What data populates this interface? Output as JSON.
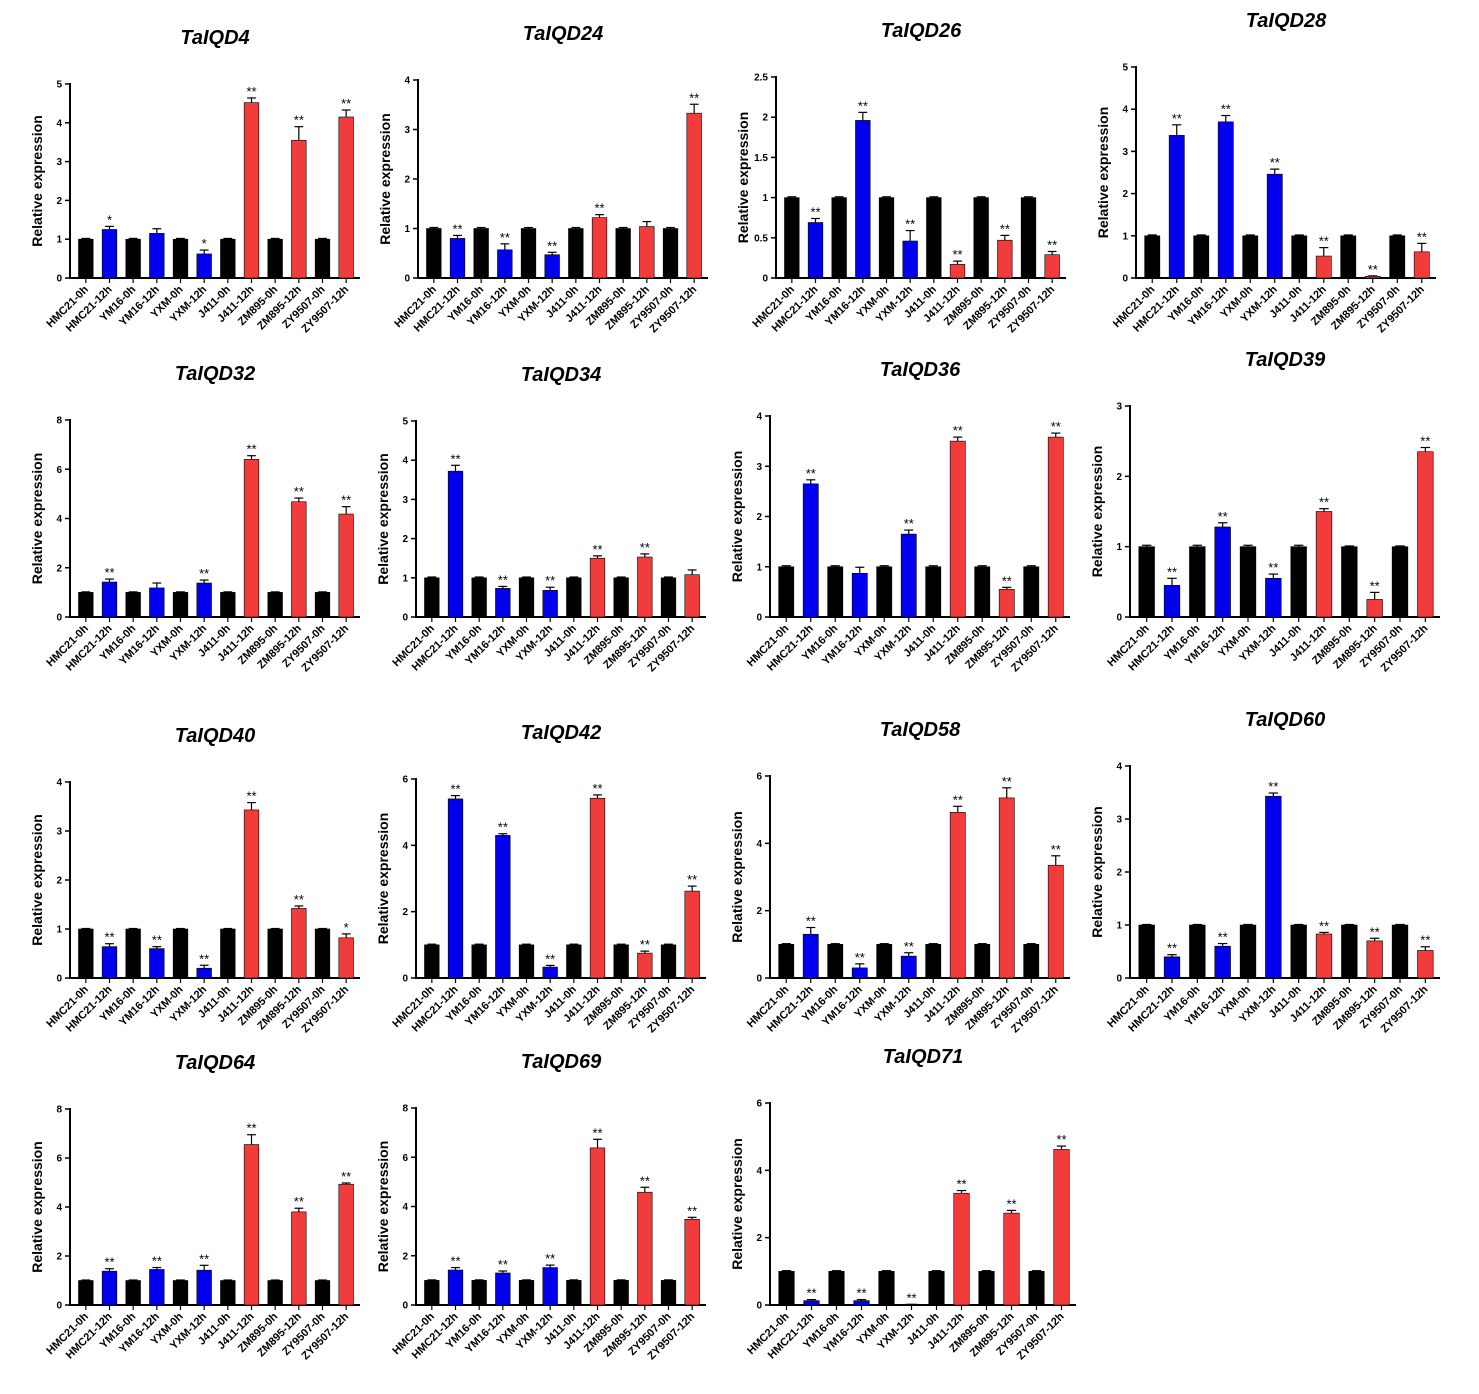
{
  "colors": {
    "black": "#000000",
    "blue": "#0000ee",
    "red": "#f23b3b"
  },
  "chart_data": [
    {
      "type": "bar",
      "title": "TaIQD4",
      "ylabel": "Relative expression",
      "ylim": [
        0,
        5
      ],
      "yticks": [
        0,
        1,
        2,
        3,
        4,
        5
      ],
      "categories": [
        "HMC21-0h",
        "HMC21-12h",
        "YM16-0h",
        "YM16-12h",
        "YXM-0h",
        "YXM-12h",
        "J411-0h",
        "J411-12h",
        "ZM895-0h",
        "ZM895-12h",
        "ZY9507-0h",
        "ZY9507-12h"
      ],
      "values": [
        1,
        1.25,
        1,
        1.15,
        1,
        0.62,
        1,
        4.52,
        1,
        3.55,
        1,
        4.15
      ],
      "errors": [
        0.02,
        0.08,
        0.02,
        0.12,
        0.02,
        0.1,
        0.02,
        0.12,
        0.02,
        0.35,
        0.02,
        0.18
      ],
      "colors": [
        "black",
        "blue",
        "black",
        "blue",
        "black",
        "blue",
        "black",
        "red",
        "black",
        "red",
        "black",
        "red"
      ],
      "significance": [
        "",
        "*",
        "",
        "",
        "",
        "*",
        "",
        "**",
        "",
        "**",
        "",
        "**"
      ]
    },
    {
      "type": "bar",
      "title": "TaIQD24",
      "ylabel": "Relative expression",
      "ylim": [
        0,
        4
      ],
      "yticks": [
        0,
        1,
        2,
        3,
        4
      ],
      "categories": [
        "HMC21-0h",
        "HMC21-12h",
        "YM16-0h",
        "YM16-12h",
        "YXM-0h",
        "YXM-12h",
        "J411-0h",
        "J411-12h",
        "ZM895-0h",
        "ZM895-12h",
        "ZY9507-0h",
        "ZY9507-12h"
      ],
      "values": [
        1,
        0.8,
        1,
        0.57,
        1,
        0.47,
        1,
        1.22,
        1,
        1.04,
        1,
        3.33
      ],
      "errors": [
        0.02,
        0.06,
        0.02,
        0.12,
        0.02,
        0.05,
        0.02,
        0.06,
        0.02,
        0.1,
        0.02,
        0.18
      ],
      "colors": [
        "black",
        "blue",
        "black",
        "blue",
        "black",
        "blue",
        "black",
        "red",
        "black",
        "red",
        "black",
        "red"
      ],
      "significance": [
        "",
        "**",
        "",
        "**",
        "",
        "**",
        "",
        "**",
        "",
        "",
        "",
        "**"
      ]
    },
    {
      "type": "bar",
      "title": "TaIQD26",
      "ylabel": "Relative expression",
      "ylim": [
        0,
        2.5
      ],
      "yticks": [
        0,
        0.5,
        1.0,
        1.5,
        2.0,
        2.5
      ],
      "categories": [
        "HMC21-0h",
        "HMC21-12h",
        "YM16-0h",
        "YM16-12h",
        "YXM-0h",
        "YXM-12h",
        "J411-0h",
        "J411-12h",
        "ZM895-0h",
        "ZM895-12h",
        "ZY9507-0h",
        "ZY9507-12h"
      ],
      "values": [
        1,
        0.69,
        1,
        1.96,
        1,
        0.46,
        1,
        0.17,
        1,
        0.47,
        1,
        0.29
      ],
      "errors": [
        0.01,
        0.05,
        0.01,
        0.1,
        0.01,
        0.13,
        0.01,
        0.04,
        0.01,
        0.06,
        0.01,
        0.04
      ],
      "colors": [
        "black",
        "blue",
        "black",
        "blue",
        "black",
        "blue",
        "black",
        "red",
        "black",
        "red",
        "black",
        "red"
      ],
      "significance": [
        "",
        "**",
        "",
        "**",
        "",
        "**",
        "",
        "**",
        "",
        "**",
        "",
        "**"
      ]
    },
    {
      "type": "bar",
      "title": "TaIQD28",
      "ylabel": "Relative expression",
      "ylim": [
        0,
        5
      ],
      "yticks": [
        0,
        1,
        2,
        3,
        4,
        5
      ],
      "categories": [
        "HMC21-0h",
        "HMC21-12h",
        "YM16-0h",
        "YM16-12h",
        "YXM-0h",
        "YXM-12h",
        "J411-0h",
        "J411-12h",
        "ZM895-0h",
        "ZM895-12h",
        "ZY9507-0h",
        "ZY9507-12h"
      ],
      "values": [
        1,
        3.38,
        1,
        3.7,
        1,
        2.46,
        1,
        0.52,
        1,
        0.04,
        1,
        0.62
      ],
      "errors": [
        0.02,
        0.25,
        0.02,
        0.15,
        0.02,
        0.12,
        0.02,
        0.2,
        0.02,
        0.01,
        0.02,
        0.2
      ],
      "colors": [
        "black",
        "blue",
        "black",
        "blue",
        "black",
        "blue",
        "black",
        "red",
        "black",
        "red",
        "black",
        "red"
      ],
      "significance": [
        "",
        "**",
        "",
        "**",
        "",
        "**",
        "",
        "**",
        "",
        "**",
        "",
        "**"
      ]
    },
    {
      "type": "bar",
      "title": "TaIQD32",
      "ylabel": "Relative expression",
      "ylim": [
        0,
        8
      ],
      "yticks": [
        0,
        2,
        4,
        6,
        8
      ],
      "categories": [
        "HMC21-0h",
        "HMC21-12h",
        "YM16-0h",
        "YM16-12h",
        "YXM-0h",
        "YXM-12h",
        "J411-0h",
        "J411-12h",
        "ZM895-0h",
        "ZM895-12h",
        "ZY9507-0h",
        "ZY9507-12h"
      ],
      "values": [
        1,
        1.42,
        1,
        1.18,
        1,
        1.38,
        1,
        6.4,
        1,
        4.68,
        1,
        4.18
      ],
      "errors": [
        0.02,
        0.12,
        0.02,
        0.2,
        0.02,
        0.12,
        0.02,
        0.15,
        0.02,
        0.15,
        0.02,
        0.3
      ],
      "colors": [
        "black",
        "blue",
        "black",
        "blue",
        "black",
        "blue",
        "black",
        "red",
        "black",
        "red",
        "black",
        "red"
      ],
      "significance": [
        "",
        "**",
        "",
        "",
        "",
        "**",
        "",
        "**",
        "",
        "**",
        "",
        "**"
      ]
    },
    {
      "type": "bar",
      "title": "TaIQD34",
      "ylabel": "Relative expression",
      "ylim": [
        0,
        5
      ],
      "yticks": [
        0,
        1,
        2,
        3,
        4,
        5
      ],
      "categories": [
        "HMC21-0h",
        "HMC21-12h",
        "YM16-0h",
        "YM16-12h",
        "YXM-0h",
        "YXM-12h",
        "J411-0h",
        "J411-12h",
        "ZM895-0h",
        "ZM895-12h",
        "ZY9507-0h",
        "ZY9507-12h"
      ],
      "values": [
        1,
        3.72,
        1,
        0.73,
        1,
        0.68,
        1,
        1.5,
        1,
        1.53,
        1,
        1.08
      ],
      "errors": [
        0.02,
        0.15,
        0.02,
        0.05,
        0.02,
        0.08,
        0.02,
        0.06,
        0.02,
        0.08,
        0.02,
        0.12
      ],
      "colors": [
        "black",
        "blue",
        "black",
        "blue",
        "black",
        "blue",
        "black",
        "red",
        "black",
        "red",
        "black",
        "red"
      ],
      "significance": [
        "",
        "**",
        "",
        "**",
        "",
        "**",
        "",
        "**",
        "",
        "**",
        "",
        ""
      ]
    },
    {
      "type": "bar",
      "title": "TaIQD36",
      "ylabel": "Relative expression",
      "ylim": [
        0,
        4
      ],
      "yticks": [
        0,
        1,
        2,
        3,
        4
      ],
      "categories": [
        "HMC21-0h",
        "HMC21-12h",
        "YM16-0h",
        "YM16-12h",
        "YXM-0h",
        "YXM-12h",
        "J411-0h",
        "J411-12h",
        "ZM895-0h",
        "ZM895-12h",
        "ZY9507-0h",
        "ZY9507-12h"
      ],
      "values": [
        1,
        2.65,
        1,
        0.87,
        1,
        1.65,
        1,
        3.5,
        1,
        0.55,
        1,
        3.58
      ],
      "errors": [
        0.02,
        0.08,
        0.02,
        0.12,
        0.02,
        0.08,
        0.02,
        0.08,
        0.02,
        0.04,
        0.02,
        0.08
      ],
      "colors": [
        "black",
        "blue",
        "black",
        "blue",
        "black",
        "blue",
        "black",
        "red",
        "black",
        "red",
        "black",
        "red"
      ],
      "significance": [
        "",
        "**",
        "",
        "",
        "",
        "**",
        "",
        "**",
        "",
        "**",
        "",
        "**"
      ]
    },
    {
      "type": "bar",
      "title": "TaIQD39",
      "ylabel": "Relative expression",
      "ylim": [
        0,
        3
      ],
      "yticks": [
        0,
        1,
        2,
        3
      ],
      "categories": [
        "HMC21-0h",
        "HMC21-12h",
        "YM16-0h",
        "YM16-12h",
        "YXM-0h",
        "YXM-12h",
        "J411-0h",
        "J411-12h",
        "ZM895-0h",
        "ZM895-12h",
        "ZY9507-0h",
        "ZY9507-12h"
      ],
      "values": [
        1,
        0.45,
        1,
        1.28,
        1,
        0.55,
        1,
        1.5,
        1,
        0.25,
        1,
        2.35
      ],
      "errors": [
        0.02,
        0.1,
        0.02,
        0.06,
        0.02,
        0.06,
        0.02,
        0.04,
        0.01,
        0.1,
        0.01,
        0.06
      ],
      "colors": [
        "black",
        "blue",
        "black",
        "blue",
        "black",
        "blue",
        "black",
        "red",
        "black",
        "red",
        "black",
        "red"
      ],
      "significance": [
        "",
        "**",
        "",
        "**",
        "",
        "**",
        "",
        "**",
        "",
        "**",
        "",
        "**"
      ]
    },
    {
      "type": "bar",
      "title": "TaIQD40",
      "ylabel": "Relative expression",
      "ylim": [
        0,
        4
      ],
      "yticks": [
        0,
        1,
        2,
        3,
        4
      ],
      "categories": [
        "HMC21-0h",
        "HMC21-12h",
        "YM16-0h",
        "YM16-12h",
        "YXM-0h",
        "YXM-12h",
        "J411-0h",
        "J411-12h",
        "ZM895-0h",
        "ZM895-12h",
        "ZY9507-0h",
        "ZY9507-12h"
      ],
      "values": [
        1,
        0.64,
        1,
        0.6,
        1,
        0.2,
        1,
        3.43,
        1,
        1.42,
        1,
        0.82
      ],
      "errors": [
        0.01,
        0.06,
        0.01,
        0.04,
        0.01,
        0.06,
        0.01,
        0.15,
        0.01,
        0.05,
        0.01,
        0.08
      ],
      "colors": [
        "black",
        "blue",
        "black",
        "blue",
        "black",
        "blue",
        "black",
        "red",
        "black",
        "red",
        "black",
        "red"
      ],
      "significance": [
        "",
        "**",
        "",
        "**",
        "",
        "**",
        "",
        "**",
        "",
        "**",
        "",
        "*"
      ]
    },
    {
      "type": "bar",
      "title": "TaIQD42",
      "ylabel": "Relative expression",
      "ylim": [
        0,
        6
      ],
      "yticks": [
        0,
        2,
        4,
        6
      ],
      "categories": [
        "HMC21-0h",
        "HMC21-12h",
        "YM16-0h",
        "YM16-12h",
        "YXM-0h",
        "YXM-12h",
        "J411-0h",
        "J411-12h",
        "ZM895-0h",
        "ZM895-12h",
        "ZY9507-0h",
        "ZY9507-12h"
      ],
      "values": [
        1,
        5.4,
        1,
        4.3,
        1,
        0.33,
        1,
        5.42,
        1,
        0.75,
        1,
        2.62
      ],
      "errors": [
        0.02,
        0.1,
        0.02,
        0.05,
        0.02,
        0.05,
        0.02,
        0.1,
        0.02,
        0.06,
        0.02,
        0.15
      ],
      "colors": [
        "black",
        "blue",
        "black",
        "blue",
        "black",
        "blue",
        "black",
        "red",
        "black",
        "red",
        "black",
        "red"
      ],
      "significance": [
        "",
        "**",
        "",
        "**",
        "",
        "**",
        "",
        "**",
        "",
        "**",
        "",
        "**"
      ]
    },
    {
      "type": "bar",
      "title": "TaIQD58",
      "ylabel": "Relative expression",
      "ylim": [
        0,
        6
      ],
      "yticks": [
        0,
        2,
        4,
        6
      ],
      "categories": [
        "HMC21-0h",
        "HMC21-12h",
        "YM16-0h",
        "YM16-12h",
        "YXM-0h",
        "YXM-12h",
        "J411-0h",
        "J411-12h",
        "ZM895-0h",
        "ZM895-12h",
        "ZY9507-0h",
        "ZY9507-12h"
      ],
      "values": [
        1,
        1.3,
        1,
        0.3,
        1,
        0.65,
        1,
        4.92,
        1,
        5.35,
        1,
        3.35
      ],
      "errors": [
        0.02,
        0.2,
        0.02,
        0.12,
        0.02,
        0.1,
        0.02,
        0.18,
        0.02,
        0.3,
        0.02,
        0.28
      ],
      "colors": [
        "black",
        "blue",
        "black",
        "blue",
        "black",
        "blue",
        "black",
        "red",
        "black",
        "red",
        "black",
        "red"
      ],
      "significance": [
        "",
        "**",
        "",
        "**",
        "",
        "**",
        "",
        "**",
        "",
        "**",
        "",
        "**"
      ]
    },
    {
      "type": "bar",
      "title": "TaIQD60",
      "ylabel": "Relative expression",
      "ylim": [
        0,
        4
      ],
      "yticks": [
        0,
        1,
        2,
        3,
        4
      ],
      "categories": [
        "HMC21-0h",
        "HMC21-12h",
        "YM16-0h",
        "YM16-12h",
        "YXM-0h",
        "YXM-12h",
        "J411-0h",
        "J411-12h",
        "ZM895-0h",
        "ZM895-12h",
        "ZY9507-0h",
        "ZY9507-12h"
      ],
      "values": [
        1,
        0.4,
        1,
        0.6,
        1,
        3.43,
        1,
        0.83,
        1,
        0.7,
        1,
        0.52
      ],
      "errors": [
        0.01,
        0.04,
        0.01,
        0.05,
        0.01,
        0.06,
        0.01,
        0.03,
        0.01,
        0.05,
        0.01,
        0.07
      ],
      "colors": [
        "black",
        "blue",
        "black",
        "blue",
        "black",
        "blue",
        "black",
        "red",
        "black",
        "red",
        "black",
        "red"
      ],
      "significance": [
        "",
        "**",
        "",
        "**",
        "",
        "**",
        "",
        "**",
        "",
        "**",
        "",
        "**"
      ]
    },
    {
      "type": "bar",
      "title": "TaIQD64",
      "ylabel": "Relative expression",
      "ylim": [
        0,
        8
      ],
      "yticks": [
        0,
        2,
        4,
        6,
        8
      ],
      "categories": [
        "HMC21-0h",
        "HMC21-12h",
        "YM16-0h",
        "YM16-12h",
        "YXM-0h",
        "YXM-12h",
        "J411-0h",
        "J411-12h",
        "ZM895-0h",
        "ZM895-12h",
        "ZY9507-0h",
        "ZY9507-12h"
      ],
      "values": [
        1,
        1.38,
        1,
        1.45,
        1,
        1.42,
        1,
        6.55,
        1,
        3.8,
        1,
        4.93
      ],
      "errors": [
        0.02,
        0.1,
        0.02,
        0.08,
        0.02,
        0.2,
        0.02,
        0.4,
        0.02,
        0.15,
        0.02,
        0.05
      ],
      "colors": [
        "black",
        "blue",
        "black",
        "blue",
        "black",
        "blue",
        "black",
        "red",
        "black",
        "red",
        "black",
        "red"
      ],
      "significance": [
        "",
        "**",
        "",
        "**",
        "",
        "**",
        "",
        "**",
        "",
        "**",
        "",
        "**"
      ]
    },
    {
      "type": "bar",
      "title": "TaIQD69",
      "ylabel": "Relative expression",
      "ylim": [
        0,
        8
      ],
      "yticks": [
        0,
        2,
        4,
        6,
        8
      ],
      "categories": [
        "HMC21-0h",
        "HMC21-12h",
        "YM16-0h",
        "YM16-12h",
        "YXM-0h",
        "YXM-12h",
        "J411-0h",
        "J411-12h",
        "ZM895-0h",
        "ZM895-12h",
        "ZY9507-0h",
        "ZY9507-12h"
      ],
      "values": [
        1,
        1.42,
        1,
        1.3,
        1,
        1.52,
        1,
        6.38,
        1,
        4.58,
        1,
        3.48
      ],
      "errors": [
        0.02,
        0.1,
        0.02,
        0.08,
        0.02,
        0.1,
        0.02,
        0.35,
        0.02,
        0.2,
        0.02,
        0.08
      ],
      "colors": [
        "black",
        "blue",
        "black",
        "blue",
        "black",
        "blue",
        "black",
        "red",
        "black",
        "red",
        "black",
        "red"
      ],
      "significance": [
        "",
        "**",
        "",
        "**",
        "",
        "**",
        "",
        "**",
        "",
        "**",
        "",
        "**"
      ]
    },
    {
      "type": "bar",
      "title": "TaIQD71",
      "ylabel": "Relative expression",
      "ylim": [
        0,
        6
      ],
      "yticks": [
        0,
        2,
        4,
        6
      ],
      "categories": [
        "HMC21-0h",
        "HMC21-12h",
        "YM16-0h",
        "YM16-12h",
        "YXM-0h",
        "YXM-12h",
        "J411-0h",
        "J411-12h",
        "ZM895-0h",
        "ZM895-12h",
        "ZY9507-0h",
        "ZY9507-12h"
      ],
      "values": [
        1,
        0.13,
        1,
        0.13,
        1,
        0.01,
        1,
        3.32,
        1,
        2.73,
        1,
        4.62
      ],
      "errors": [
        0.02,
        0.03,
        0.02,
        0.03,
        0.02,
        0.01,
        0.02,
        0.08,
        0.02,
        0.08,
        0.02,
        0.1
      ],
      "colors": [
        "black",
        "blue",
        "black",
        "blue",
        "black",
        "blue",
        "black",
        "red",
        "black",
        "red",
        "black",
        "red"
      ],
      "significance": [
        "",
        "**",
        "",
        "**",
        "",
        "**",
        "",
        "**",
        "",
        "**",
        "",
        "**"
      ]
    }
  ]
}
